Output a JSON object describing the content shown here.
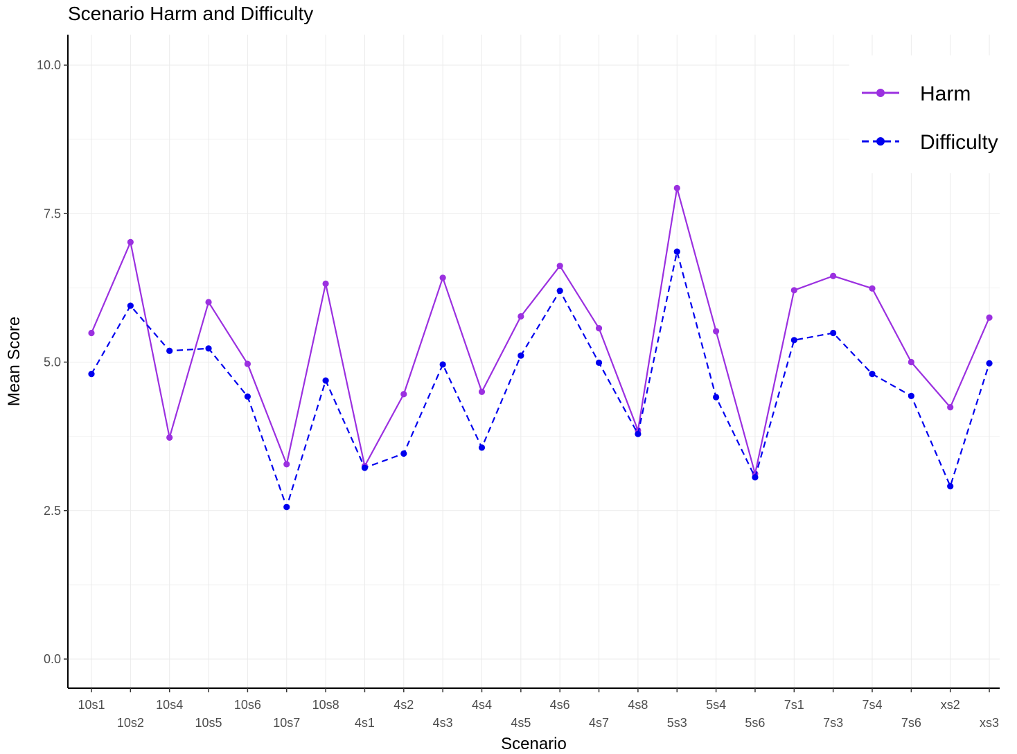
{
  "chart_data": {
    "type": "line",
    "title": "Scenario Harm and Difficulty",
    "xlabel": "Scenario",
    "ylabel": "Mean Score",
    "ylim": [
      -0.5,
      10.5
    ],
    "yticks": [
      "0.0",
      "2.5",
      "5.0",
      "7.5",
      "10.0"
    ],
    "grid": true,
    "legend_position": "top-right",
    "categories": [
      "10s1",
      "10s2",
      "10s4",
      "10s5",
      "10s6",
      "10s7",
      "10s8",
      "4s1",
      "4s2",
      "4s3",
      "4s4",
      "4s5",
      "4s6",
      "4s7",
      "4s8",
      "5s3",
      "5s4",
      "5s6",
      "7s1",
      "7s3",
      "7s4",
      "7s6",
      "xs2",
      "xs3"
    ],
    "series": [
      {
        "name": "Harm",
        "color": "#9b30e0",
        "line_style": "solid",
        "values": [
          5.49,
          7.02,
          3.73,
          6.01,
          4.97,
          3.28,
          6.32,
          3.25,
          4.46,
          6.42,
          4.5,
          5.77,
          6.62,
          5.57,
          3.85,
          7.93,
          5.52,
          3.12,
          6.21,
          6.45,
          6.24,
          5.0,
          4.24,
          5.75
        ]
      },
      {
        "name": "Difficulty",
        "color": "#0000ee",
        "line_style": "dashed",
        "values": [
          4.8,
          5.95,
          5.19,
          5.23,
          4.42,
          2.56,
          4.69,
          3.22,
          3.46,
          4.96,
          3.56,
          5.11,
          6.2,
          4.99,
          3.79,
          6.86,
          4.41,
          3.06,
          5.37,
          5.49,
          4.8,
          4.43,
          2.91,
          4.98
        ]
      }
    ]
  }
}
